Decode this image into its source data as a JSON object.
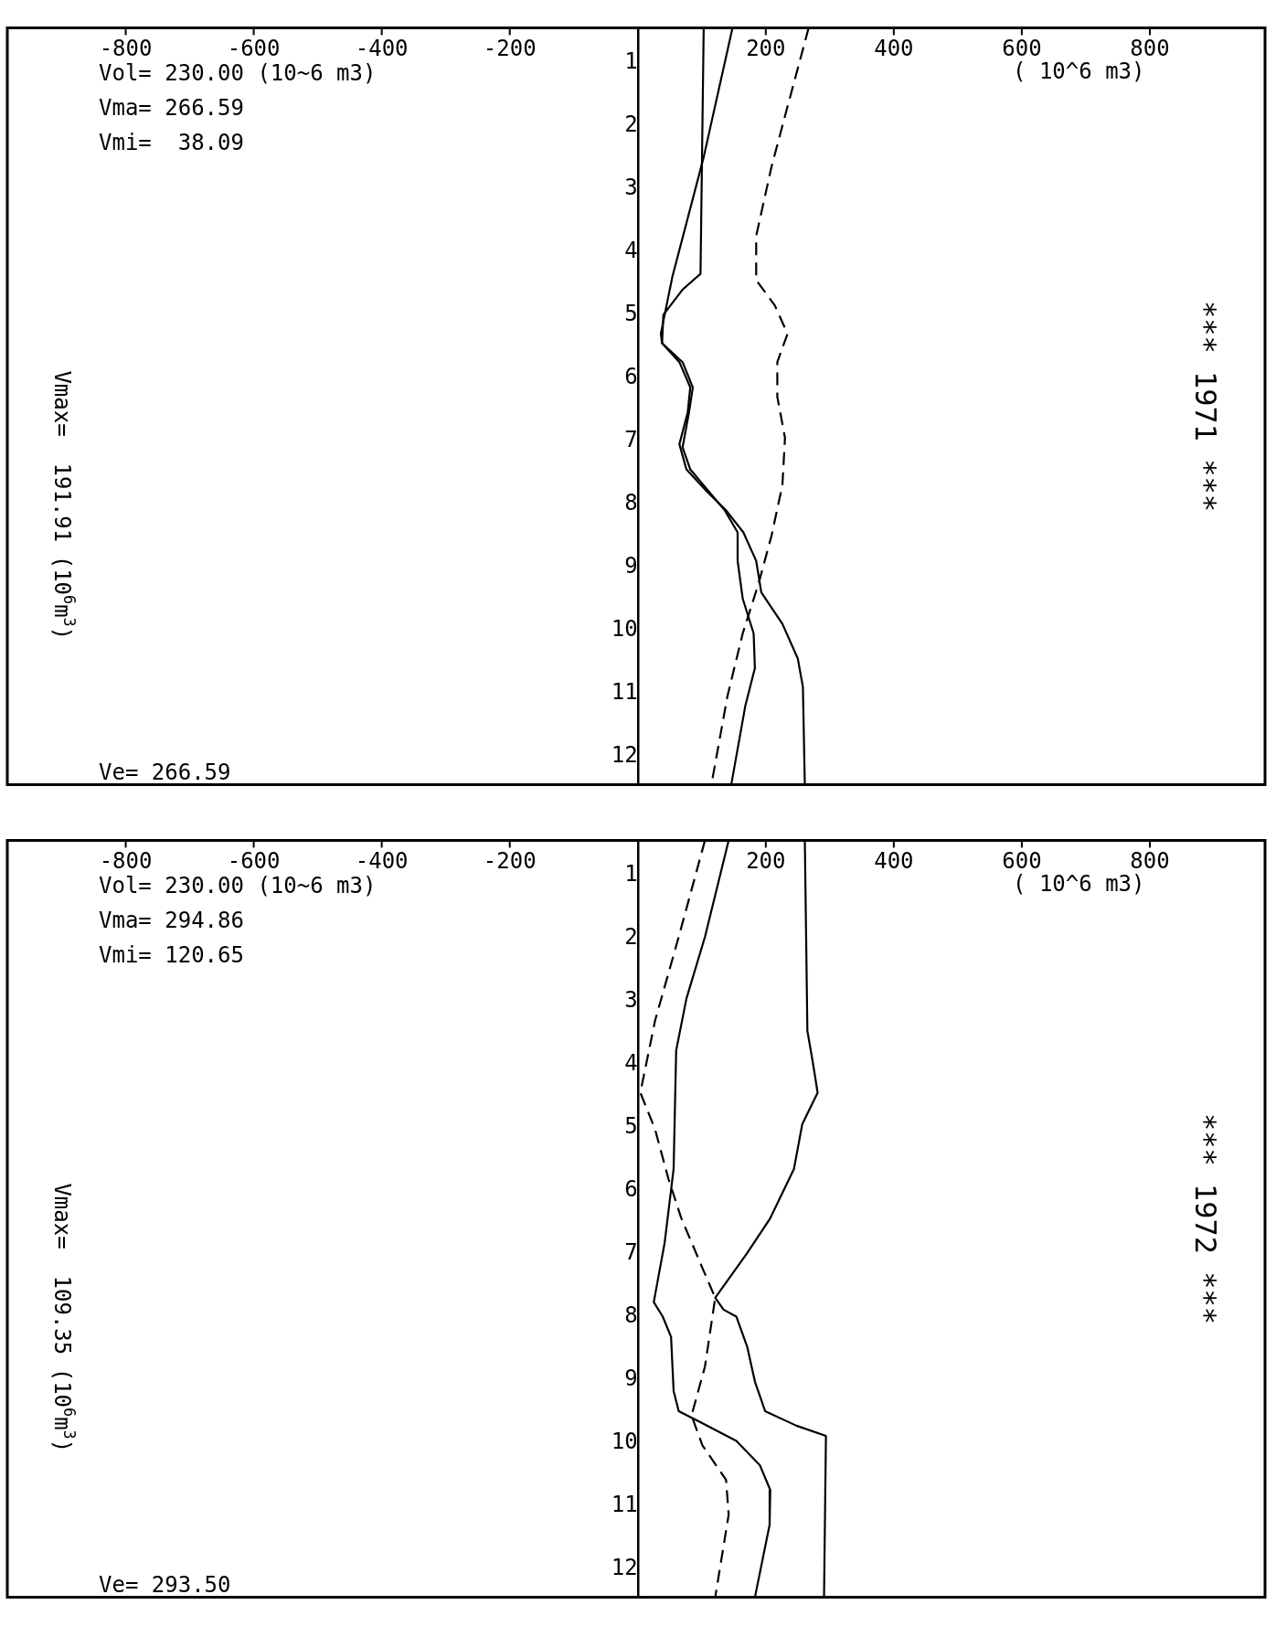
{
  "chart_data": [
    {
      "type": "line",
      "title": "*** 1971 ***",
      "xlabel": "( 10^6 m3)",
      "orientation": "horizontal",
      "marker": "none",
      "legend": false,
      "xlim": [
        -985,
        980
      ],
      "xticks": [
        -800,
        -600,
        -400,
        -200,
        200,
        400,
        600,
        800
      ],
      "ylim": [
        12.45,
        0.45
      ],
      "yticks": [
        1,
        2,
        3,
        4,
        5,
        6,
        7,
        8,
        9,
        10,
        11,
        12
      ],
      "annotations": [
        "Vol= 230.00 (10~6 m3)",
        "Vma= 266.59",
        "Vmi=  38.09",
        "Vmax=  191.91 (10$^{6}$m$^{3}$)",
        "Ve= 266.59"
      ],
      "series": [
        {
          "color": "#000000",
          "line_style": "solid",
          "x": [
            0.45,
            2.5,
            4.4,
            5.3,
            5.45,
            5.75,
            6.15,
            6.55,
            7.1,
            7.45,
            7.8,
            8.1,
            8.45,
            8.9,
            9.5,
            10.05,
            10.6,
            11.2,
            12.45
          ],
          "values": [
            148,
            103,
            54,
            36,
            38,
            70,
            86,
            80,
            70,
            82,
            111,
            136,
            156,
            156,
            164,
            181,
            183,
            168,
            146
          ]
        },
        {
          "color": "#000000",
          "line_style": "solid",
          "x": [
            0.45,
            4.35,
            4.6,
            5.0,
            5.45,
            5.75,
            6.15,
            6.55,
            7.05,
            7.45,
            7.8,
            8.1,
            8.45,
            8.9,
            9.4,
            9.9,
            10.45,
            10.9,
            12.45
          ],
          "values": [
            103,
            98,
            70,
            40,
            38,
            65,
            82,
            78,
            65,
            76,
            108,
            138,
            165,
            185,
            193,
            226,
            250,
            258,
            261
          ]
        },
        {
          "color": "#000000",
          "line_style": "dashed",
          "x": [
            0.45,
            1.85,
            2.65,
            3.75,
            4.45,
            4.85,
            5.3,
            5.75,
            6.3,
            6.95,
            7.7,
            8.5,
            9.25,
            10.05,
            11.05,
            12.45
          ],
          "values": [
            267,
            230,
            209,
            185,
            185,
            214,
            234,
            218,
            218,
            230,
            226,
            209,
            189,
            164,
            140,
            115
          ]
        }
      ]
    },
    {
      "type": "line",
      "title": "*** 1972 ***",
      "xlabel": "( 10^6 m3)",
      "orientation": "horizontal",
      "marker": "none",
      "legend": false,
      "xlim": [
        -985,
        980
      ],
      "xticks": [
        -800,
        -600,
        -400,
        -200,
        200,
        400,
        600,
        800
      ],
      "ylim": [
        12.45,
        0.45
      ],
      "yticks": [
        1,
        2,
        3,
        4,
        5,
        6,
        7,
        8,
        9,
        10,
        11,
        12
      ],
      "annotations": [
        "Vol= 230.00 (10~6 m3)",
        "Vma= 294.86",
        "Vmi= 120.65",
        "Vmax=  109.35 (10$^{6}$m$^{3}$)",
        "Ve= 293.50"
      ],
      "series": [
        {
          "color": "#000000",
          "line_style": "solid",
          "x": [
            0.45,
            1.98,
            2.96,
            3.78,
            5.66,
            6.83,
            7.77,
            8.0,
            8.32,
            9.18,
            9.5,
            9.65,
            9.97,
            10.36,
            10.75,
            11.3,
            12.45
          ],
          "values": [
            142,
            105,
            76,
            60,
            56,
            42,
            25,
            39,
            52,
            56,
            64,
            93,
            154,
            191,
            207,
            206,
            183
          ]
        },
        {
          "color": "#000000",
          "line_style": "solid",
          "x": [
            0.45,
            3.47,
            3.94,
            4.45,
            4.95,
            5.66,
            6.44,
            6.99,
            7.7,
            7.89,
            8.0,
            8.48,
            9.03,
            9.5,
            9.73,
            9.89,
            12.45
          ],
          "values": [
            261,
            265,
            273,
            281,
            257,
            244,
            207,
            171,
            121,
            134,
            154,
            171,
            183,
            199,
            248,
            294,
            291
          ]
        },
        {
          "color": "#000000",
          "line_style": "dashed",
          "x": [
            0.45,
            1.98,
            3.31,
            4.45,
            5.03,
            5.82,
            6.44,
            7.23,
            7.7,
            8.79,
            9.57,
            10.04,
            10.59,
            11.14,
            12.45
          ],
          "values": [
            105,
            64,
            27,
            4,
            27,
            48,
            68,
            101,
            121,
            105,
            84,
            101,
            138,
            142,
            121
          ]
        }
      ]
    }
  ]
}
